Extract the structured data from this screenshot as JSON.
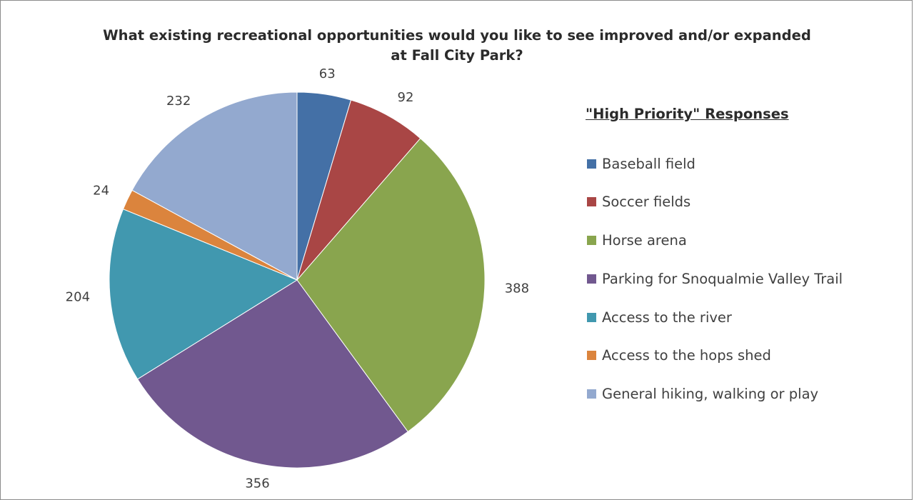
{
  "chart_data": {
    "type": "pie",
    "title": "What existing recreational opportunities would you like to see improved and/or expanded at Fall City Park?",
    "legend_title": "\"High Priority\" Responses",
    "legend_position": "right",
    "slices": [
      {
        "label": "Baseball field",
        "value": 63,
        "color": "#4470a6"
      },
      {
        "label": "Soccer fields",
        "value": 92,
        "color": "#a94645"
      },
      {
        "label": "Horse arena",
        "value": 388,
        "color": "#89a54e"
      },
      {
        "label": "Parking for Snoqualmie Valley Trail",
        "value": 356,
        "color": "#71588f"
      },
      {
        "label": "Access to the river",
        "value": 204,
        "color": "#4198af"
      },
      {
        "label": "Access to the hops shed",
        "value": 24,
        "color": "#db843d"
      },
      {
        "label": "General hiking, walking or play",
        "value": 232,
        "color": "#93a9cf"
      }
    ]
  }
}
